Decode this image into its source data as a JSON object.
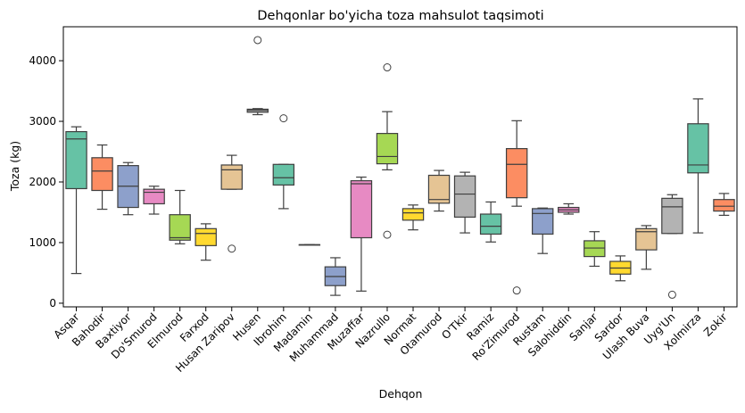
{
  "chart_data": {
    "type": "box",
    "title": "Dehqonlar bo'yicha toza mahsulot taqsimoti",
    "xlabel": "Dehqon",
    "ylabel": "Toza (kg)",
    "ylim": [
      -60,
      4560
    ],
    "yticks": [
      0,
      1000,
      2000,
      3000,
      4000
    ],
    "grid": false,
    "legend": "none",
    "boxes": [
      {
        "category": "Asqar",
        "color": "#66c2a5",
        "whislo": 490,
        "q1": 1890,
        "median": 2710,
        "q3": 2830,
        "whishi": 2910,
        "fliers": []
      },
      {
        "category": "Bahodir",
        "color": "#fc8d62",
        "whislo": 1550,
        "q1": 1860,
        "median": 2180,
        "q3": 2400,
        "whishi": 2610,
        "fliers": []
      },
      {
        "category": "Baxtiyor",
        "color": "#8da0cb",
        "whislo": 1460,
        "q1": 1580,
        "median": 1930,
        "q3": 2270,
        "whishi": 2320,
        "fliers": []
      },
      {
        "category": "Do'Smurod",
        "color": "#e78ac3",
        "whislo": 1470,
        "q1": 1640,
        "median": 1830,
        "q3": 1880,
        "whishi": 1930,
        "fliers": []
      },
      {
        "category": "Elmurod",
        "color": "#a6d854",
        "whislo": 980,
        "q1": 1040,
        "median": 1080,
        "q3": 1460,
        "whishi": 1860,
        "fliers": []
      },
      {
        "category": "Farxod",
        "color": "#ffd92f",
        "whislo": 710,
        "q1": 950,
        "median": 1150,
        "q3": 1230,
        "whishi": 1310,
        "fliers": []
      },
      {
        "category": "Husan Zaripov",
        "color": "#e5c494",
        "whislo": 1880,
        "q1": 1880,
        "median": 2200,
        "q3": 2280,
        "whishi": 2440,
        "fliers": [
          900
        ]
      },
      {
        "category": "Husen",
        "color": "#b3b3b3",
        "whislo": 3110,
        "q1": 3150,
        "median": 3180,
        "q3": 3200,
        "whishi": 3210,
        "fliers": [
          4340
        ]
      },
      {
        "category": "Ibrohim",
        "color": "#66c2a5",
        "whislo": 1560,
        "q1": 1950,
        "median": 2070,
        "q3": 2290,
        "whishi": 2290,
        "fliers": [
          3050
        ]
      },
      {
        "category": "Madamin",
        "color": "#fc8d62",
        "whislo": 965,
        "q1": 965,
        "median": 965,
        "q3": 965,
        "whishi": 965,
        "fliers": []
      },
      {
        "category": "Muhammad",
        "color": "#8da0cb",
        "whislo": 130,
        "q1": 290,
        "median": 440,
        "q3": 600,
        "whishi": 750,
        "fliers": []
      },
      {
        "category": "Muzaffar",
        "color": "#e78ac3",
        "whislo": 200,
        "q1": 1080,
        "median": 1970,
        "q3": 2020,
        "whishi": 2080,
        "fliers": []
      },
      {
        "category": "Nazrullo",
        "color": "#a6d854",
        "whislo": 2200,
        "q1": 2300,
        "median": 2420,
        "q3": 2800,
        "whishi": 3160,
        "fliers": [
          3890,
          1130
        ]
      },
      {
        "category": "Normat",
        "color": "#ffd92f",
        "whislo": 1210,
        "q1": 1370,
        "median": 1490,
        "q3": 1560,
        "whishi": 1620,
        "fliers": []
      },
      {
        "category": "Otamurod",
        "color": "#e5c494",
        "whislo": 1520,
        "q1": 1650,
        "median": 1710,
        "q3": 2110,
        "whishi": 2190,
        "fliers": []
      },
      {
        "category": "O'Tkir",
        "color": "#b3b3b3",
        "whislo": 1160,
        "q1": 1420,
        "median": 1800,
        "q3": 2100,
        "whishi": 2160,
        "fliers": []
      },
      {
        "category": "Ramiz",
        "color": "#66c2a5",
        "whislo": 1010,
        "q1": 1140,
        "median": 1270,
        "q3": 1470,
        "whishi": 1670,
        "fliers": []
      },
      {
        "category": "Ro'Zimurod",
        "color": "#fc8d62",
        "whislo": 1600,
        "q1": 1740,
        "median": 2290,
        "q3": 2550,
        "whishi": 3010,
        "fliers": [
          210
        ]
      },
      {
        "category": "Rustam",
        "color": "#8da0cb",
        "whislo": 820,
        "q1": 1140,
        "median": 1480,
        "q3": 1560,
        "whishi": 1570,
        "fliers": []
      },
      {
        "category": "Salohiddin",
        "color": "#e78ac3",
        "whislo": 1470,
        "q1": 1500,
        "median": 1540,
        "q3": 1580,
        "whishi": 1640,
        "fliers": []
      },
      {
        "category": "Sanjar",
        "color": "#a6d854",
        "whislo": 610,
        "q1": 770,
        "median": 910,
        "q3": 1030,
        "whishi": 1180,
        "fliers": []
      },
      {
        "category": "Sardor",
        "color": "#ffd92f",
        "whislo": 370,
        "q1": 480,
        "median": 580,
        "q3": 690,
        "whishi": 780,
        "fliers": []
      },
      {
        "category": "Ulash Buva",
        "color": "#e5c494",
        "whislo": 560,
        "q1": 880,
        "median": 1180,
        "q3": 1230,
        "whishi": 1280,
        "fliers": []
      },
      {
        "category": "Uyg'Un",
        "color": "#b3b3b3",
        "whislo": 1150,
        "q1": 1150,
        "median": 1590,
        "q3": 1730,
        "whishi": 1790,
        "fliers": [
          140
        ]
      },
      {
        "category": "Xolmirza",
        "color": "#66c2a5",
        "whislo": 1160,
        "q1": 2150,
        "median": 2280,
        "q3": 2960,
        "whishi": 3370,
        "fliers": []
      },
      {
        "category": "Zokir",
        "color": "#fc8d62",
        "whislo": 1450,
        "q1": 1520,
        "median": 1600,
        "q3": 1710,
        "whishi": 1810,
        "fliers": []
      }
    ]
  }
}
